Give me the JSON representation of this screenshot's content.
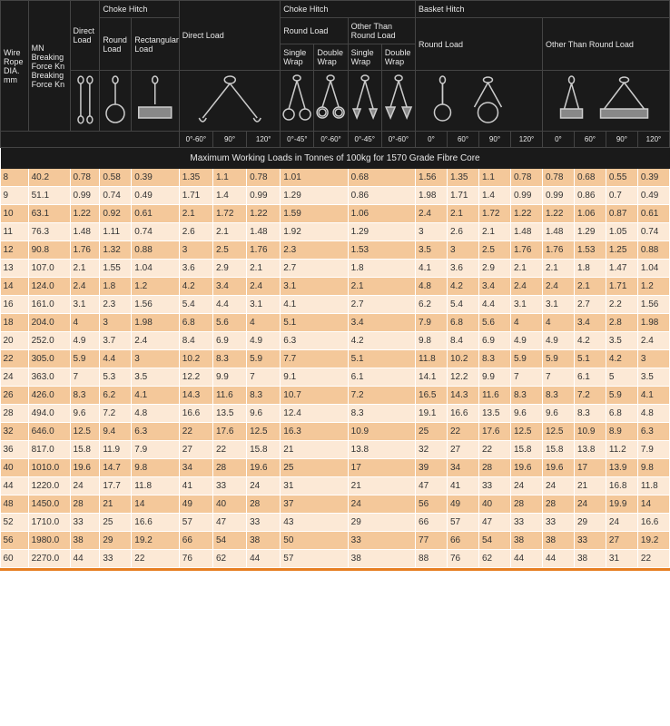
{
  "header": {
    "row1": {
      "wire_rope": "Wire Rope DIA. mm",
      "breaking_force": "MN Breaking Force Kn Breaking Force Kn",
      "direct_load": "Direct Load",
      "choke_hitch": "Choke Hitch",
      "direct_load2": "Direct Load",
      "choke_hitch2": "Choke Hitch",
      "basket_hitch": "Basket Hitch"
    },
    "row2": {
      "round_load": "Round Load",
      "rect_load": "Rectangular Load",
      "round_load2": "Round Load",
      "other_round": "Other Than Round Load",
      "round_load3": "Round Load",
      "other_round2": "Other Than Round Load"
    },
    "row3": {
      "single_wrap": "Single Wrap",
      "double_wrap": "Double Wrap",
      "single_wrap2": "Single Wrap",
      "double_wrap2": "Double Wrap"
    },
    "angles": {
      "a060": "0°-60°",
      "a90": "90°",
      "a120": "120°",
      "a045": "0°-45°",
      "a060b": "0°-60°",
      "a045b": "0°-45°",
      "a060c": "0°-60°",
      "a0": "0°",
      "a60": "60°",
      "a90b": "90°",
      "a120b": "120°",
      "a0b": "0°",
      "a60b": "60°",
      "a90c": "90°",
      "a120c": "120°"
    }
  },
  "subtitle": "Maximum Working Loads in Tonnes of 100kg for 1570 Grade Fibre Core",
  "colors": {
    "header_bg": "#1a1a1a",
    "header_fg": "#e8e8e8",
    "row_light": "#fce9d6",
    "row_dark": "#f4c89a",
    "footer": "#e67e22"
  },
  "rows": [
    {
      "dia": "8",
      "bf": "40.2",
      "dl": "0.78",
      "chr": "0.58",
      "chrect": "0.39",
      "d1": "1.35",
      "d2": "1.1",
      "d3": "0.78",
      "c1": "1.01",
      "c2": "",
      "c3": "0.68",
      "c4": "",
      "b1": "1.56",
      "b2": "1.35",
      "b3": "1.1",
      "b4": "0.78",
      "b5": "0.78",
      "b6": "0.68",
      "b7": "0.55",
      "b8": "0.39"
    },
    {
      "dia": "9",
      "bf": "51.1",
      "dl": "0.99",
      "chr": "0.74",
      "chrect": "0.49",
      "d1": "1.71",
      "d2": "1.4",
      "d3": "0.99",
      "c1": "1.29",
      "c2": "",
      "c3": "0.86",
      "c4": "",
      "b1": "1.98",
      "b2": "1.71",
      "b3": "1.4",
      "b4": "0.99",
      "b5": "0.99",
      "b6": "0.86",
      "b7": "0.7",
      "b8": "0.49"
    },
    {
      "dia": "10",
      "bf": "63.1",
      "dl": "1.22",
      "chr": "0.92",
      "chrect": "0.61",
      "d1": "2.1",
      "d2": "1.72",
      "d3": "1.22",
      "c1": "1.59",
      "c2": "",
      "c3": "1.06",
      "c4": "",
      "b1": "2.4",
      "b2": "2.1",
      "b3": "1.72",
      "b4": "1.22",
      "b5": "1.22",
      "b6": "1.06",
      "b7": "0.87",
      "b8": "0.61"
    },
    {
      "dia": "11",
      "bf": "76.3",
      "dl": "1.48",
      "chr": "1.11",
      "chrect": "0.74",
      "d1": "2.6",
      "d2": "2.1",
      "d3": "1.48",
      "c1": "1.92",
      "c2": "",
      "c3": "1.29",
      "c4": "",
      "b1": "3",
      "b2": "2.6",
      "b3": "2.1",
      "b4": "1.48",
      "b5": "1.48",
      "b6": "1.29",
      "b7": "1.05",
      "b8": "0.74"
    },
    {
      "dia": "12",
      "bf": "90.8",
      "dl": "1.76",
      "chr": "1.32",
      "chrect": "0.88",
      "d1": "3",
      "d2": "2.5",
      "d3": "1.76",
      "c1": "2.3",
      "c2": "",
      "c3": "1.53",
      "c4": "",
      "b1": "3.5",
      "b2": "3",
      "b3": "2.5",
      "b4": "1.76",
      "b5": "1.76",
      "b6": "1.53",
      "b7": "1.25",
      "b8": "0.88"
    },
    {
      "dia": "13",
      "bf": "107.0",
      "dl": "2.1",
      "chr": "1.55",
      "chrect": "1.04",
      "d1": "3.6",
      "d2": "2.9",
      "d3": "2.1",
      "c1": "2.7",
      "c2": "",
      "c3": "1.8",
      "c4": "",
      "b1": "4.1",
      "b2": "3.6",
      "b3": "2.9",
      "b4": "2.1",
      "b5": "2.1",
      "b6": "1.8",
      "b7": "1.47",
      "b8": "1.04"
    },
    {
      "dia": "14",
      "bf": "124.0",
      "dl": "2.4",
      "chr": "1.8",
      "chrect": "1.2",
      "d1": "4.2",
      "d2": "3.4",
      "d3": "2.4",
      "c1": "3.1",
      "c2": "",
      "c3": "2.1",
      "c4": "",
      "b1": "4.8",
      "b2": "4.2",
      "b3": "3.4",
      "b4": "2.4",
      "b5": "2.4",
      "b6": "2.1",
      "b7": "1.71",
      "b8": "1.2"
    },
    {
      "dia": "16",
      "bf": "161.0",
      "dl": "3.1",
      "chr": "2.3",
      "chrect": "1.56",
      "d1": "5.4",
      "d2": "4.4",
      "d3": "3.1",
      "c1": "4.1",
      "c2": "",
      "c3": "2.7",
      "c4": "",
      "b1": "6.2",
      "b2": "5.4",
      "b3": "4.4",
      "b4": "3.1",
      "b5": "3.1",
      "b6": "2.7",
      "b7": "2.2",
      "b8": "1.56"
    },
    {
      "dia": "18",
      "bf": "204.0",
      "dl": "4",
      "chr": "3",
      "chrect": "1.98",
      "d1": "6.8",
      "d2": "5.6",
      "d3": "4",
      "c1": "5.1",
      "c2": "",
      "c3": "3.4",
      "c4": "",
      "b1": "7.9",
      "b2": "6.8",
      "b3": "5.6",
      "b4": "4",
      "b5": "4",
      "b6": "3.4",
      "b7": "2.8",
      "b8": "1.98"
    },
    {
      "dia": "20",
      "bf": "252.0",
      "dl": "4.9",
      "chr": "3.7",
      "chrect": "2.4",
      "d1": "8.4",
      "d2": "6.9",
      "d3": "4.9",
      "c1": "6.3",
      "c2": "",
      "c3": "4.2",
      "c4": "",
      "b1": "9.8",
      "b2": "8.4",
      "b3": "6.9",
      "b4": "4.9",
      "b5": "4.9",
      "b6": "4.2",
      "b7": "3.5",
      "b8": "2.4"
    },
    {
      "dia": "22",
      "bf": "305.0",
      "dl": "5.9",
      "chr": "4.4",
      "chrect": "3",
      "d1": "10.2",
      "d2": "8.3",
      "d3": "5.9",
      "c1": "7.7",
      "c2": "",
      "c3": "5.1",
      "c4": "",
      "b1": "11.8",
      "b2": "10.2",
      "b3": "8.3",
      "b4": "5.9",
      "b5": "5.9",
      "b6": "5.1",
      "b7": "4.2",
      "b8": "3"
    },
    {
      "dia": "24",
      "bf": "363.0",
      "dl": "7",
      "chr": "5.3",
      "chrect": "3.5",
      "d1": "12.2",
      "d2": "9.9",
      "d3": "7",
      "c1": "9.1",
      "c2": "",
      "c3": "6.1",
      "c4": "",
      "b1": "14.1",
      "b2": "12.2",
      "b3": "9.9",
      "b4": "7",
      "b5": "7",
      "b6": "6.1",
      "b7": "5",
      "b8": "3.5"
    },
    {
      "dia": "26",
      "bf": "426.0",
      "dl": "8.3",
      "chr": "6.2",
      "chrect": "4.1",
      "d1": "14.3",
      "d2": "11.6",
      "d3": "8.3",
      "c1": "10.7",
      "c2": "",
      "c3": "7.2",
      "c4": "",
      "b1": "16.5",
      "b2": "14.3",
      "b3": "11.6",
      "b4": "8.3",
      "b5": "8.3",
      "b6": "7.2",
      "b7": "5.9",
      "b8": "4.1"
    },
    {
      "dia": "28",
      "bf": "494.0",
      "dl": "9.6",
      "chr": "7.2",
      "chrect": "4.8",
      "d1": "16.6",
      "d2": "13.5",
      "d3": "9.6",
      "c1": "12.4",
      "c2": "",
      "c3": "8.3",
      "c4": "",
      "b1": "19.1",
      "b2": "16.6",
      "b3": "13.5",
      "b4": "9.6",
      "b5": "9.6",
      "b6": "8.3",
      "b7": "6.8",
      "b8": "4.8"
    },
    {
      "dia": "32",
      "bf": "646.0",
      "dl": "12.5",
      "chr": "9.4",
      "chrect": "6.3",
      "d1": "22",
      "d2": "17.6",
      "d3": "12.5",
      "c1": "16.3",
      "c2": "",
      "c3": "10.9",
      "c4": "",
      "b1": "25",
      "b2": "22",
      "b3": "17.6",
      "b4": "12.5",
      "b5": "12.5",
      "b6": "10.9",
      "b7": "8.9",
      "b8": "6.3"
    },
    {
      "dia": "36",
      "bf": "817.0",
      "dl": "15.8",
      "chr": "11.9",
      "chrect": "7.9",
      "d1": "27",
      "d2": "22",
      "d3": "15.8",
      "c1": "21",
      "c2": "",
      "c3": "13.8",
      "c4": "",
      "b1": "32",
      "b2": "27",
      "b3": "22",
      "b4": "15.8",
      "b5": "15.8",
      "b6": "13.8",
      "b7": "11.2",
      "b8": "7.9"
    },
    {
      "dia": "40",
      "bf": "1010.0",
      "dl": "19.6",
      "chr": "14.7",
      "chrect": "9.8",
      "d1": "34",
      "d2": "28",
      "d3": "19.6",
      "c1": "25",
      "c2": "",
      "c3": "17",
      "c4": "",
      "b1": "39",
      "b2": "34",
      "b3": "28",
      "b4": "19.6",
      "b5": "19.6",
      "b6": "17",
      "b7": "13.9",
      "b8": "9.8"
    },
    {
      "dia": "44",
      "bf": "1220.0",
      "dl": "24",
      "chr": "17.7",
      "chrect": "11.8",
      "d1": "41",
      "d2": "33",
      "d3": "24",
      "c1": "31",
      "c2": "",
      "c3": "21",
      "c4": "",
      "b1": "47",
      "b2": "41",
      "b3": "33",
      "b4": "24",
      "b5": "24",
      "b6": "21",
      "b7": "16.8",
      "b8": "11.8"
    },
    {
      "dia": "48",
      "bf": "1450.0",
      "dl": "28",
      "chr": "21",
      "chrect": "14",
      "d1": "49",
      "d2": "40",
      "d3": "28",
      "c1": "37",
      "c2": "",
      "c3": "24",
      "c4": "",
      "b1": "56",
      "b2": "49",
      "b3": "40",
      "b4": "28",
      "b5": "28",
      "b6": "24",
      "b7": "19.9",
      "b8": "14"
    },
    {
      "dia": "52",
      "bf": "1710.0",
      "dl": "33",
      "chr": "25",
      "chrect": "16.6",
      "d1": "57",
      "d2": "47",
      "d3": "33",
      "c1": "43",
      "c2": "",
      "c3": "29",
      "c4": "",
      "b1": "66",
      "b2": "57",
      "b3": "47",
      "b4": "33",
      "b5": "33",
      "b6": "29",
      "b7": "24",
      "b8": "16.6"
    },
    {
      "dia": "56",
      "bf": "1980.0",
      "dl": "38",
      "chr": "29",
      "chrect": "19.2",
      "d1": "66",
      "d2": "54",
      "d3": "38",
      "c1": "50",
      "c2": "",
      "c3": "33",
      "c4": "",
      "b1": "77",
      "b2": "66",
      "b3": "54",
      "b4": "38",
      "b5": "38",
      "b6": "33",
      "b7": "27",
      "b8": "19.2"
    },
    {
      "dia": "60",
      "bf": "2270.0",
      "dl": "44",
      "chr": "33",
      "chrect": "22",
      "d1": "76",
      "d2": "62",
      "d3": "44",
      "c1": "57",
      "c2": "",
      "c3": "38",
      "c4": "",
      "b1": "88",
      "b2": "76",
      "b3": "62",
      "b4": "44",
      "b5": "44",
      "b6": "38",
      "b7": "31",
      "b8": "22"
    }
  ]
}
